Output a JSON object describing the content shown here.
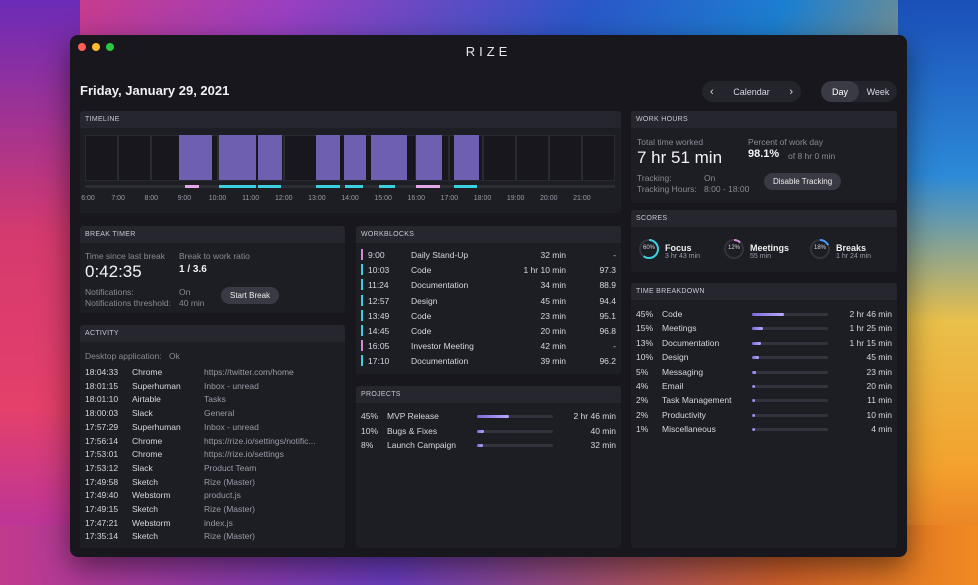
{
  "app_title": "RIZE",
  "date": "Friday, January 29, 2021",
  "calendar": {
    "label": "Calendar",
    "prev": "‹",
    "next": "›"
  },
  "view_toggle": {
    "day": "Day",
    "week": "Week"
  },
  "timeline": {
    "title": "TIMELINE",
    "hours": [
      "6:00",
      "7:00",
      "8:00",
      "9:00",
      "10:00",
      "11:00",
      "12:00",
      "13:00",
      "14:00",
      "15:00",
      "16:00",
      "17:00",
      "18:00",
      "19:00",
      "20:00",
      "21:00"
    ]
  },
  "work_hours": {
    "title": "WORK HOURS",
    "total_label": "Total time worked",
    "total_value": "7 hr 51 min",
    "percent_label": "Percent of work day",
    "percent_value": "98.1%",
    "percent_of": "of 8 hr 0 min",
    "tracking_label": "Tracking:",
    "tracking_value": "On",
    "tracking_hours_label": "Tracking Hours:",
    "tracking_hours_value": "8:00 - 18:00",
    "disable_button": "Disable Tracking"
  },
  "break_timer": {
    "title": "BREAK TIMER",
    "since_label": "Time since last break",
    "since_value": "0:42:35",
    "ratio_label": "Break to work ratio",
    "ratio_value": "1 / 3.6",
    "notifications_label": "Notifications:",
    "notifications_value": "On",
    "threshold_label": "Notifications threshold:",
    "threshold_value": "40 min",
    "start_button": "Start Break"
  },
  "scores": {
    "title": "SCORES",
    "items": [
      {
        "name": "Focus",
        "sub": "3 hr 43 min",
        "pct": "60%",
        "value": 0.6
      },
      {
        "name": "Meetings",
        "sub": "55 min",
        "pct": "12%",
        "value": 0.12
      },
      {
        "name": "Breaks",
        "sub": "1 hr 24 min",
        "pct": "18%",
        "value": 0.18
      }
    ]
  },
  "workblocks": {
    "title": "WORKBLOCKS",
    "rows": [
      {
        "time": "9:00",
        "name": "Daily Stand-Up",
        "duration": "32 min",
        "score": "-",
        "color": "#d58ad6"
      },
      {
        "time": "10:03",
        "name": "Code",
        "duration": "1 hr 10 min",
        "score": "97.3",
        "color": "#3ccfe0"
      },
      {
        "time": "11:24",
        "name": "Documentation",
        "duration": "34 min",
        "score": "88.9",
        "color": "#3ccfe0"
      },
      {
        "time": "12:57",
        "name": "Design",
        "duration": "45 min",
        "score": "94.4",
        "color": "#3ccfe0"
      },
      {
        "time": "13:49",
        "name": "Code",
        "duration": "23 min",
        "score": "95.1",
        "color": "#3ccfe0"
      },
      {
        "time": "14:45",
        "name": "Code",
        "duration": "20 min",
        "score": "96.8",
        "color": "#3ccfe0"
      },
      {
        "time": "16:05",
        "name": "Investor Meeting",
        "duration": "42 min",
        "score": "-",
        "color": "#d58ad6"
      },
      {
        "time": "17:10",
        "name": "Documentation",
        "duration": "39 min",
        "score": "96.2",
        "color": "#3ccfe0"
      }
    ]
  },
  "time_breakdown": {
    "title": "TIME BREAKDOWN",
    "rows": [
      {
        "pct": "45%",
        "name": "Code",
        "duration": "2 hr 46 min",
        "value": 0.45
      },
      {
        "pct": "15%",
        "name": "Meetings",
        "duration": "1 hr 25 min",
        "value": 0.15
      },
      {
        "pct": "13%",
        "name": "Documentation",
        "duration": "1 hr 15 min",
        "value": 0.13
      },
      {
        "pct": "10%",
        "name": "Design",
        "duration": "45 min",
        "value": 0.1
      },
      {
        "pct": "5%",
        "name": "Messaging",
        "duration": "23 min",
        "value": 0.05
      },
      {
        "pct": "4%",
        "name": "Email",
        "duration": "20 min",
        "value": 0.04
      },
      {
        "pct": "2%",
        "name": "Task Management",
        "duration": "11 min",
        "value": 0.02
      },
      {
        "pct": "2%",
        "name": "Productivity",
        "duration": "10 min",
        "value": 0.02
      },
      {
        "pct": "1%",
        "name": "Miscellaneous",
        "duration": "4 min",
        "value": 0.01
      }
    ]
  },
  "activity": {
    "title": "ACTIVITY",
    "desktop_label": "Desktop application:",
    "desktop_value": "Ok",
    "rows": [
      {
        "time": "18:04:33",
        "app": "Chrome",
        "detail": "https://twitter.com/home"
      },
      {
        "time": "18:01:15",
        "app": "Superhuman",
        "detail": "Inbox - unread"
      },
      {
        "time": "18:01:10",
        "app": "Airtable",
        "detail": "Tasks"
      },
      {
        "time": "18:00:03",
        "app": "Slack",
        "detail": "General"
      },
      {
        "time": "17:57:29",
        "app": "Superhuman",
        "detail": "Inbox - unread"
      },
      {
        "time": "17:56:14",
        "app": "Chrome",
        "detail": "https://rize.io/settings/notific..."
      },
      {
        "time": "17:53:01",
        "app": "Chrome",
        "detail": "https://rize.io/settings"
      },
      {
        "time": "17:53:12",
        "app": "Slack",
        "detail": "Product Team"
      },
      {
        "time": "17:49:58",
        "app": "Sketch",
        "detail": "Rize (Master)"
      },
      {
        "time": "17:49:40",
        "app": "Webstorm",
        "detail": "product.js"
      },
      {
        "time": "17:49:15",
        "app": "Sketch",
        "detail": "Rize (Master)"
      },
      {
        "time": "17:47:21",
        "app": "Webstorm",
        "detail": "index.js"
      },
      {
        "time": "17:35:14",
        "app": "Sketch",
        "detail": "Rize (Master)"
      }
    ]
  },
  "projects": {
    "title": "PROJECTS",
    "rows": [
      {
        "pct": "45%",
        "name": "MVP Release",
        "duration": "2 hr 46 min",
        "value": 0.45
      },
      {
        "pct": "10%",
        "name": "Bugs & Fixes",
        "duration": "40 min",
        "value": 0.1
      },
      {
        "pct": "8%",
        "name": "Launch Campaign",
        "duration": "32 min",
        "value": 0.08
      }
    ]
  }
}
